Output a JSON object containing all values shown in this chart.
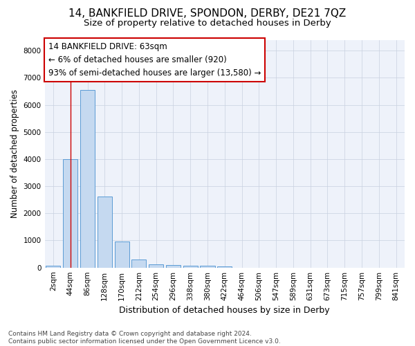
{
  "title": "14, BANKFIELD DRIVE, SPONDON, DERBY, DE21 7QZ",
  "subtitle": "Size of property relative to detached houses in Derby",
  "xlabel": "Distribution of detached houses by size in Derby",
  "ylabel": "Number of detached properties",
  "bar_labels": [
    "2sqm",
    "44sqm",
    "86sqm",
    "128sqm",
    "170sqm",
    "212sqm",
    "254sqm",
    "296sqm",
    "338sqm",
    "380sqm",
    "422sqm",
    "464sqm",
    "506sqm",
    "547sqm",
    "589sqm",
    "631sqm",
    "673sqm",
    "715sqm",
    "757sqm",
    "799sqm",
    "841sqm"
  ],
  "bar_values": [
    60,
    4000,
    6550,
    2620,
    960,
    290,
    130,
    85,
    65,
    60,
    50,
    0,
    0,
    0,
    0,
    0,
    0,
    0,
    0,
    0,
    0
  ],
  "bar_color": "#c5d9f0",
  "bar_edge_color": "#5b9bd5",
  "reference_line_color": "#cc0000",
  "annotation_line1": "14 BANKFIELD DRIVE: 63sqm",
  "annotation_line2": "← 6% of detached houses are smaller (920)",
  "annotation_line3": "93% of semi-detached houses are larger (13,580) →",
  "annotation_box_color": "#ffffff",
  "annotation_box_edge_color": "#cc0000",
  "ylim": [
    0,
    8400
  ],
  "yticks": [
    0,
    1000,
    2000,
    3000,
    4000,
    5000,
    6000,
    7000,
    8000
  ],
  "footer_text": "Contains HM Land Registry data © Crown copyright and database right 2024.\nContains public sector information licensed under the Open Government Licence v3.0.",
  "bg_color": "#ffffff",
  "plot_bg_color": "#eef2fa",
  "grid_color": "#c8d0e0",
  "title_fontsize": 11,
  "subtitle_fontsize": 9.5,
  "xlabel_fontsize": 9,
  "ylabel_fontsize": 8.5,
  "tick_fontsize": 7.5,
  "annotation_fontsize": 8.5,
  "footer_fontsize": 6.5
}
